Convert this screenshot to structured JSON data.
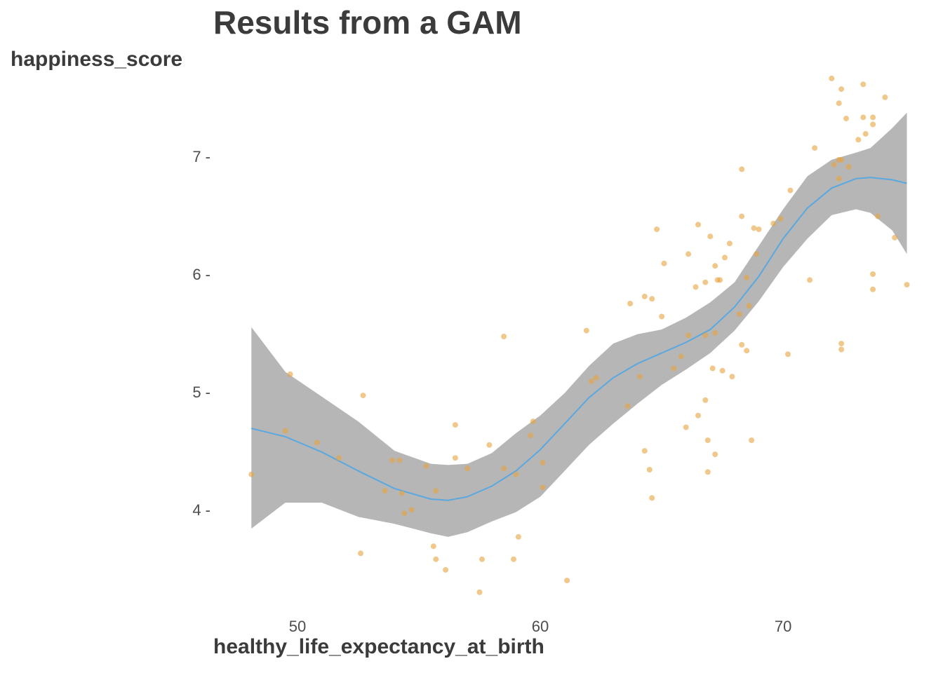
{
  "chart_data": {
    "type": "scatter",
    "title": "Results from a GAM",
    "xlabel": "healthy_life_expectancy_at_birth",
    "ylabel": "happiness_score",
    "xlim": [
      46.3,
      75.2
    ],
    "ylim": [
      3.15,
      7.85
    ],
    "x_ticks": [
      50,
      60,
      70
    ],
    "y_ticks": [
      4,
      5,
      6,
      7
    ],
    "x_tick_labels": [
      "50",
      "60",
      "70"
    ],
    "y_tick_labels": [
      "4 -",
      "5 -",
      "6 -",
      "7 -"
    ],
    "grid": false,
    "legend": "none",
    "colors": {
      "points": "#e8a33d",
      "smooth_line": "#5aa8e0",
      "ribbon": "#9e9e9e",
      "text": "#3b3b3b"
    },
    "points": [
      [
        48.1,
        4.3
      ],
      [
        49.5,
        4.67
      ],
      [
        49.7,
        5.15
      ],
      [
        50.8,
        4.57
      ],
      [
        51.7,
        4.44
      ],
      [
        52.6,
        3.63
      ],
      [
        52.7,
        4.97
      ],
      [
        53.6,
        4.16
      ],
      [
        53.9,
        4.42
      ],
      [
        54.2,
        4.42
      ],
      [
        54.3,
        4.14
      ],
      [
        54.4,
        3.97
      ],
      [
        54.7,
        4.0
      ],
      [
        55.3,
        4.37
      ],
      [
        55.6,
        3.69
      ],
      [
        55.7,
        3.58
      ],
      [
        55.7,
        4.16
      ],
      [
        56.1,
        3.49
      ],
      [
        56.5,
        4.72
      ],
      [
        56.5,
        4.44
      ],
      [
        57.0,
        4.35
      ],
      [
        57.5,
        3.3
      ],
      [
        57.6,
        3.58
      ],
      [
        57.9,
        4.55
      ],
      [
        58.5,
        4.35
      ],
      [
        58.5,
        5.47
      ],
      [
        58.9,
        3.58
      ],
      [
        59.0,
        4.3
      ],
      [
        59.1,
        3.77
      ],
      [
        59.6,
        4.63
      ],
      [
        59.7,
        4.75
      ],
      [
        60.1,
        4.4
      ],
      [
        60.1,
        4.19
      ],
      [
        61.1,
        3.4
      ],
      [
        61.9,
        5.52
      ],
      [
        62.1,
        5.09
      ],
      [
        62.3,
        5.12
      ],
      [
        63.6,
        4.88
      ],
      [
        63.7,
        5.75
      ],
      [
        64.1,
        5.13
      ],
      [
        64.3,
        5.81
      ],
      [
        64.3,
        4.5
      ],
      [
        64.5,
        4.34
      ],
      [
        64.6,
        5.79
      ],
      [
        64.6,
        4.1
      ],
      [
        64.8,
        6.38
      ],
      [
        65.0,
        5.64
      ],
      [
        65.1,
        6.09
      ],
      [
        65.5,
        5.2
      ],
      [
        65.8,
        5.3
      ],
      [
        66.0,
        4.7
      ],
      [
        66.1,
        6.17
      ],
      [
        66.1,
        5.48
      ],
      [
        66.4,
        5.89
      ],
      [
        66.5,
        6.42
      ],
      [
        66.5,
        4.8
      ],
      [
        66.8,
        5.48
      ],
      [
        66.8,
        5.93
      ],
      [
        66.8,
        4.93
      ],
      [
        66.9,
        4.32
      ],
      [
        66.9,
        4.59
      ],
      [
        67.0,
        6.32
      ],
      [
        67.1,
        5.2
      ],
      [
        67.2,
        5.5
      ],
      [
        67.2,
        4.47
      ],
      [
        67.2,
        6.07
      ],
      [
        67.3,
        5.95
      ],
      [
        67.4,
        5.95
      ],
      [
        67.5,
        5.18
      ],
      [
        67.6,
        6.14
      ],
      [
        67.8,
        6.26
      ],
      [
        67.9,
        5.13
      ],
      [
        68.2,
        5.66
      ],
      [
        68.3,
        5.4
      ],
      [
        68.3,
        6.89
      ],
      [
        68.3,
        6.49
      ],
      [
        68.5,
        5.97
      ],
      [
        68.5,
        5.35
      ],
      [
        68.6,
        5.73
      ],
      [
        68.7,
        4.59
      ],
      [
        68.8,
        6.39
      ],
      [
        68.9,
        6.17
      ],
      [
        69.0,
        6.38
      ],
      [
        69.6,
        6.43
      ],
      [
        69.9,
        6.47
      ],
      [
        70.2,
        5.32
      ],
      [
        70.3,
        6.71
      ],
      [
        71.1,
        5.95
      ],
      [
        71.3,
        7.07
      ],
      [
        72.0,
        7.66
      ],
      [
        72.1,
        6.93
      ],
      [
        72.3,
        6.97
      ],
      [
        72.3,
        6.81
      ],
      [
        72.3,
        7.45
      ],
      [
        72.4,
        6.97
      ],
      [
        72.4,
        7.57
      ],
      [
        72.4,
        5.41
      ],
      [
        72.4,
        5.36
      ],
      [
        72.6,
        7.32
      ],
      [
        72.7,
        6.91
      ],
      [
        73.1,
        7.14
      ],
      [
        73.3,
        7.33
      ],
      [
        73.3,
        7.61
      ],
      [
        73.4,
        7.19
      ],
      [
        73.7,
        6.0
      ],
      [
        73.7,
        7.27
      ],
      [
        73.7,
        7.33
      ],
      [
        73.7,
        5.87
      ],
      [
        73.9,
        6.49
      ],
      [
        74.2,
        7.5
      ],
      [
        74.6,
        6.31
      ],
      [
        75.1,
        5.91
      ]
    ],
    "smooth": {
      "x": [
        48.1,
        49.5,
        51.0,
        52.5,
        54.0,
        55.5,
        56.2,
        57.0,
        58.0,
        59.0,
        60.0,
        61.0,
        62.0,
        63.0,
        64.0,
        65.0,
        66.0,
        67.0,
        68.0,
        69.0,
        70.0,
        71.0,
        72.0,
        73.0,
        73.6,
        74.5,
        75.1
      ],
      "fit": [
        4.69,
        4.62,
        4.49,
        4.33,
        4.18,
        4.09,
        4.08,
        4.11,
        4.2,
        4.33,
        4.51,
        4.73,
        4.95,
        5.12,
        5.24,
        5.33,
        5.42,
        5.53,
        5.72,
        5.98,
        6.3,
        6.56,
        6.73,
        6.81,
        6.82,
        6.8,
        6.77
      ],
      "lower": [
        3.84,
        4.06,
        4.06,
        3.94,
        3.88,
        3.8,
        3.77,
        3.81,
        3.9,
        3.98,
        4.11,
        4.33,
        4.55,
        4.73,
        4.9,
        5.06,
        5.19,
        5.33,
        5.52,
        5.77,
        6.06,
        6.3,
        6.5,
        6.55,
        6.52,
        6.37,
        6.17
      ],
      "upper": [
        5.55,
        5.17,
        4.96,
        4.75,
        4.5,
        4.39,
        4.38,
        4.39,
        4.48,
        4.65,
        4.8,
        4.99,
        5.22,
        5.41,
        5.49,
        5.53,
        5.63,
        5.76,
        5.93,
        6.24,
        6.55,
        6.83,
        6.97,
        7.03,
        7.07,
        7.24,
        7.37
      ]
    }
  }
}
